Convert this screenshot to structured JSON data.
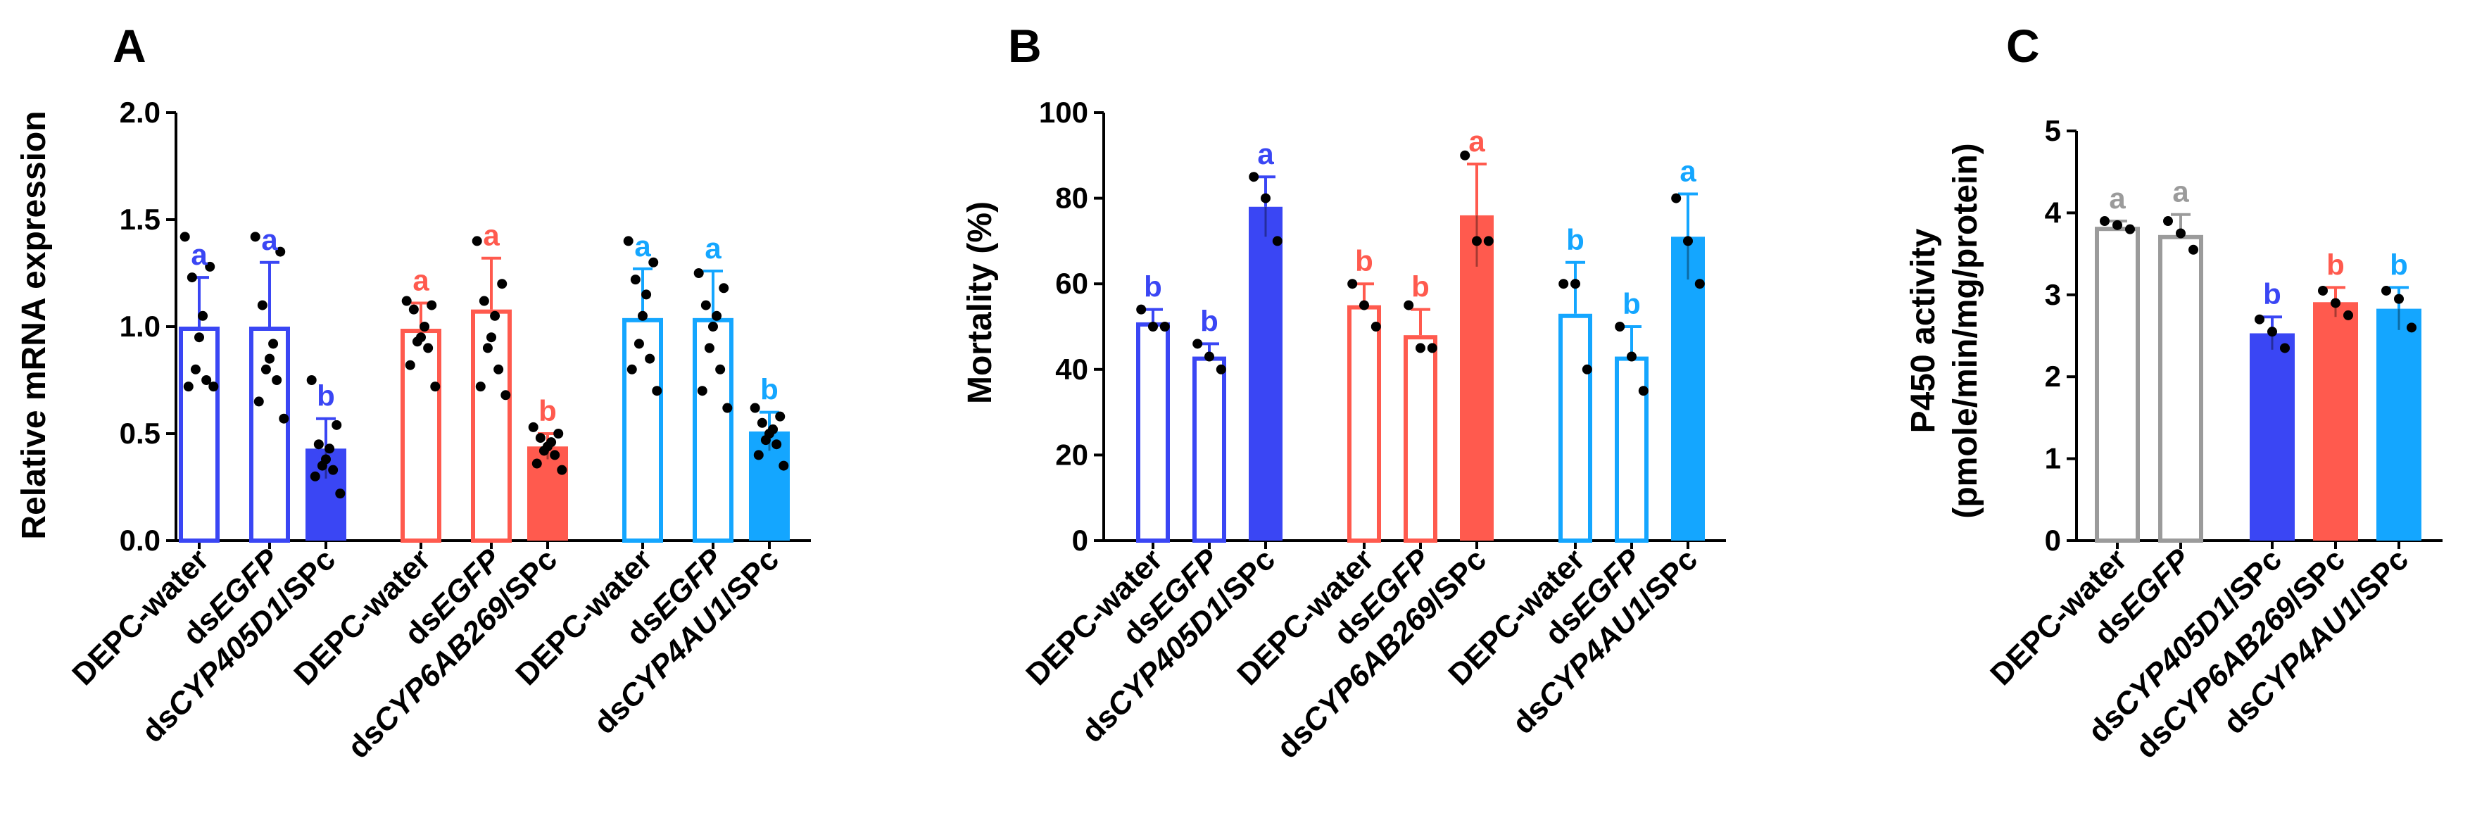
{
  "colors": {
    "blue": "#3a46f4",
    "red": "#ff5a4e",
    "cyan": "#14a6ff",
    "gray": "#9b9b9b",
    "axis": "#000000",
    "points": "#000000"
  },
  "chart_data": [
    {
      "type": "bar",
      "panel_label": "A",
      "ylabel": "Relative mRNA expression",
      "ylim": [
        0,
        2.0
      ],
      "yticks": [
        "0.0",
        "0.5",
        "1.0",
        "1.5",
        "2.0"
      ],
      "categories": [
        {
          "pre": "DEPC-water",
          "it": "",
          "post": ""
        },
        {
          "pre": "ds",
          "it": "EGFP",
          "post": ""
        },
        {
          "pre": "ds",
          "it": "CYP405D1",
          "post": "/SPc"
        },
        {
          "pre": "DEPC-water",
          "it": "",
          "post": ""
        },
        {
          "pre": "ds",
          "it": "EGFP",
          "post": ""
        },
        {
          "pre": "ds",
          "it": "CYP6AB269",
          "post": "/SPc"
        },
        {
          "pre": "DEPC-water",
          "it": "",
          "post": ""
        },
        {
          "pre": "ds",
          "it": "EGFP",
          "post": ""
        },
        {
          "pre": "ds",
          "it": "CYP4AU1",
          "post": "/SPc"
        }
      ],
      "values": [
        1.0,
        1.0,
        0.43,
        0.99,
        1.08,
        0.44,
        1.04,
        1.04,
        0.51
      ],
      "errors": [
        0.23,
        0.3,
        0.14,
        0.12,
        0.24,
        0.06,
        0.23,
        0.22,
        0.09
      ],
      "sig_letters": [
        "a",
        "a",
        "b",
        "a",
        "a",
        "b",
        "a",
        "a",
        "b"
      ],
      "fill": [
        "open",
        "open",
        "solid",
        "open",
        "open",
        "solid",
        "open",
        "open",
        "solid"
      ],
      "color_keys": [
        "blue",
        "blue",
        "blue",
        "red",
        "red",
        "red",
        "cyan",
        "cyan",
        "cyan"
      ],
      "points": [
        [
          1.42,
          1.28,
          1.23,
          1.05,
          0.95,
          0.8,
          0.75,
          0.72,
          0.72
        ],
        [
          1.42,
          1.35,
          1.1,
          0.92,
          0.85,
          0.8,
          0.75,
          0.65,
          0.57
        ],
        [
          0.75,
          0.54,
          0.45,
          0.43,
          0.38,
          0.35,
          0.33,
          0.3,
          0.22
        ],
        [
          1.12,
          1.1,
          1.08,
          1.0,
          0.95,
          0.93,
          0.9,
          0.82,
          0.72
        ],
        [
          1.4,
          1.2,
          1.12,
          1.05,
          0.95,
          0.9,
          0.8,
          0.72,
          0.68
        ],
        [
          0.53,
          0.5,
          0.48,
          0.46,
          0.44,
          0.42,
          0.4,
          0.36,
          0.33
        ],
        [
          1.4,
          1.3,
          1.22,
          1.15,
          1.05,
          0.92,
          0.85,
          0.8,
          0.7
        ],
        [
          1.25,
          1.18,
          1.1,
          1.05,
          1.0,
          0.9,
          0.8,
          0.7,
          0.62
        ],
        [
          0.62,
          0.58,
          0.55,
          0.52,
          0.5,
          0.47,
          0.45,
          0.4,
          0.35
        ]
      ]
    },
    {
      "type": "bar",
      "panel_label": "B",
      "ylabel": "Mortality (%)",
      "ylim": [
        0,
        100
      ],
      "yticks": [
        "0",
        "20",
        "40",
        "60",
        "80",
        "100"
      ],
      "categories": [
        {
          "pre": "DEPC-water",
          "it": "",
          "post": ""
        },
        {
          "pre": "ds",
          "it": "EGFP",
          "post": ""
        },
        {
          "pre": "ds",
          "it": "CYP405D1",
          "post": "/SPc"
        },
        {
          "pre": "DEPC-water",
          "it": "",
          "post": ""
        },
        {
          "pre": "ds",
          "it": "EGFP",
          "post": ""
        },
        {
          "pre": "ds",
          "it": "CYP6AB269",
          "post": "/SPc"
        },
        {
          "pre": "DEPC-water",
          "it": "",
          "post": ""
        },
        {
          "pre": "ds",
          "it": "EGFP",
          "post": ""
        },
        {
          "pre": "ds",
          "it": "CYP4AU1",
          "post": "/SPc"
        }
      ],
      "values": [
        51,
        43,
        78,
        55,
        48,
        76,
        53,
        43,
        71
      ],
      "errors": [
        3,
        3,
        7,
        5,
        6,
        12,
        12,
        7,
        10
      ],
      "sig_letters": [
        "b",
        "b",
        "a",
        "b",
        "b",
        "a",
        "b",
        "b",
        "a"
      ],
      "fill": [
        "open",
        "open",
        "solid",
        "open",
        "open",
        "solid",
        "open",
        "open",
        "solid"
      ],
      "color_keys": [
        "blue",
        "blue",
        "blue",
        "red",
        "red",
        "red",
        "cyan",
        "cyan",
        "cyan"
      ],
      "points": [
        [
          54,
          50,
          50
        ],
        [
          46,
          43,
          40
        ],
        [
          85,
          80,
          70
        ],
        [
          60,
          55,
          50
        ],
        [
          55,
          45,
          45
        ],
        [
          90,
          70,
          70
        ],
        [
          60,
          60,
          40
        ],
        [
          50,
          43,
          35
        ],
        [
          80,
          70,
          60
        ]
      ]
    },
    {
      "type": "bar",
      "panel_label": "C",
      "ylabel": "P450 activity",
      "ylabel2": "(pmole/min/mg/protein)",
      "ylim": [
        0,
        5
      ],
      "yticks": [
        "0",
        "1",
        "2",
        "3",
        "4",
        "5"
      ],
      "categories": [
        {
          "pre": "DEPC-water",
          "it": "",
          "post": ""
        },
        {
          "pre": "ds",
          "it": "EGFP",
          "post": ""
        },
        {
          "pre": "ds",
          "it": "CYP405D1",
          "post": "/SPc"
        },
        {
          "pre": "ds",
          "it": "CYP6AB269",
          "post": "/SPc"
        },
        {
          "pre": "ds",
          "it": "CYP4AU1",
          "post": "/SPc"
        }
      ],
      "values": [
        3.83,
        3.73,
        2.53,
        2.91,
        2.83
      ],
      "errors": [
        0.07,
        0.25,
        0.2,
        0.18,
        0.26
      ],
      "sig_letters": [
        "a",
        "a",
        "b",
        "b",
        "b"
      ],
      "fill": [
        "open",
        "open",
        "solid",
        "solid",
        "solid"
      ],
      "color_keys": [
        "gray",
        "gray",
        "blue",
        "red",
        "cyan"
      ],
      "points": [
        [
          3.9,
          3.85,
          3.8
        ],
        [
          3.9,
          3.75,
          3.55
        ],
        [
          2.7,
          2.55,
          2.35
        ],
        [
          3.05,
          2.9,
          2.75
        ],
        [
          3.05,
          2.95,
          2.6
        ]
      ]
    }
  ]
}
